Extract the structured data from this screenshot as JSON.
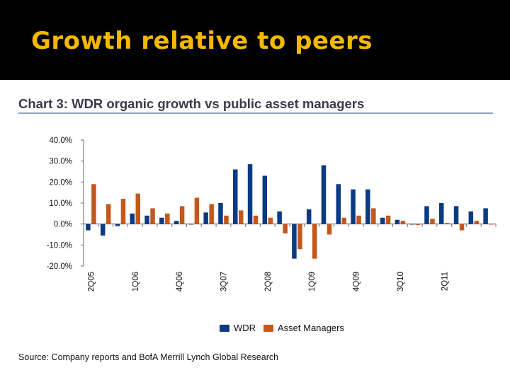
{
  "slide": {
    "title": "Growth relative to peers"
  },
  "chart_data": {
    "type": "bar",
    "title": "Chart 3: WDR organic growth vs public asset managers",
    "source": "Source: Company reports and BofA Merrill Lynch Global Research",
    "ylim": [
      -20,
      40
    ],
    "yticks": [
      40,
      30,
      20,
      10,
      0,
      -10,
      -20
    ],
    "ytick_labels": [
      "40.0%",
      "30.0%",
      "20.0%",
      "10.0%",
      "0.0%",
      "-10.0%",
      "-20.0%"
    ],
    "grid": false,
    "legend_position": "bottom-center",
    "categories": [
      "2Q05",
      "3Q05",
      "4Q05",
      "1Q06",
      "2Q06",
      "3Q06",
      "4Q06",
      "1Q07",
      "2Q07",
      "3Q07",
      "4Q07",
      "1Q08",
      "2Q08",
      "3Q08",
      "4Q08",
      "1Q09",
      "2Q09",
      "3Q09",
      "4Q09",
      "1Q10",
      "2Q10",
      "3Q10",
      "4Q10",
      "1Q11",
      "2Q11",
      "3Q11",
      "4Q11",
      "1Q12"
    ],
    "tick_labels": [
      "2Q05",
      "",
      "",
      "1Q06",
      "",
      "",
      "4Q06",
      "",
      "",
      "3Q07",
      "",
      "",
      "2Q08",
      "",
      "",
      "1Q09",
      "",
      "",
      "4Q09",
      "",
      "",
      "3Q10",
      "",
      "",
      "2Q11",
      "",
      "",
      ""
    ],
    "series": [
      {
        "name": "WDR",
        "color": "#0a3a82",
        "values": [
          -3,
          -5.5,
          -1,
          5,
          4,
          3,
          1.5,
          0,
          5.5,
          10,
          26,
          28.5,
          23,
          6,
          -16.5,
          7,
          28,
          19,
          16.5,
          16.5,
          3,
          2,
          0,
          8.5,
          10,
          8.5,
          6,
          7.5
        ]
      },
      {
        "name": "Asset Managers",
        "color": "#c4581c",
        "values": [
          19,
          9.5,
          12,
          14.5,
          7.5,
          5,
          8.5,
          12.5,
          9.5,
          4,
          6.5,
          4,
          3,
          -4.5,
          -12,
          -16.5,
          -5,
          3,
          4,
          7.5,
          4,
          1.5,
          -0.5,
          2.5,
          0.5,
          -3,
          1.5,
          0
        ]
      }
    ]
  }
}
